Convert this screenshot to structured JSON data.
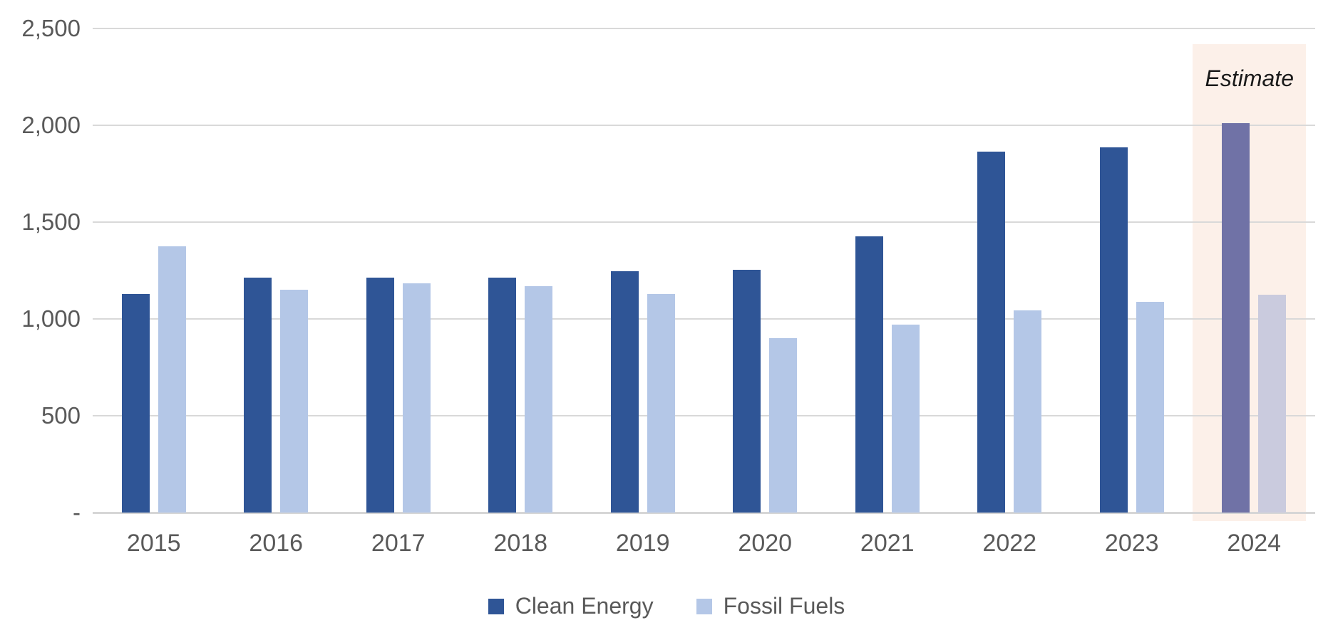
{
  "chart_data": {
    "type": "bar",
    "title": "",
    "categories": [
      "2015",
      "2016",
      "2017",
      "2018",
      "2019",
      "2020",
      "2021",
      "2022",
      "2023",
      "2024"
    ],
    "series": [
      {
        "name": "Clean Energy",
        "color": "#2F5596",
        "estimate_color": "#7072A6",
        "values": [
          1130,
          1215,
          1215,
          1215,
          1245,
          1255,
          1425,
          1865,
          1885,
          2010
        ]
      },
      {
        "name": "Fossil Fuels",
        "color": "#B4C7E7",
        "estimate_color": "#CACBDE",
        "values": [
          1375,
          1150,
          1185,
          1170,
          1130,
          900,
          970,
          1045,
          1090,
          1125
        ]
      }
    ],
    "xlabel": "",
    "ylabel": "",
    "ylim": [
      0,
      2500
    ],
    "y_axis": {
      "ticks": [
        {
          "value": 2500,
          "label": "2,500"
        },
        {
          "value": 2000,
          "label": "2,000"
        },
        {
          "value": 1500,
          "label": "1,500"
        },
        {
          "value": 1000,
          "label": "1,000"
        },
        {
          "value": 500,
          "label": "500"
        },
        {
          "value": 0,
          "label": "-"
        }
      ],
      "grid": true
    },
    "estimate": {
      "label": "Estimate",
      "category": "2024",
      "box_color": "#FCF0E9",
      "text_color": "#1A1A1A"
    },
    "legend": {
      "position": "bottom",
      "entries": [
        "Clean Energy",
        "Fossil Fuels"
      ]
    },
    "style": {
      "gridline_color": "#D9D9D9",
      "axis_line_color": "#D6D6D6",
      "label_color": "#595959"
    }
  }
}
